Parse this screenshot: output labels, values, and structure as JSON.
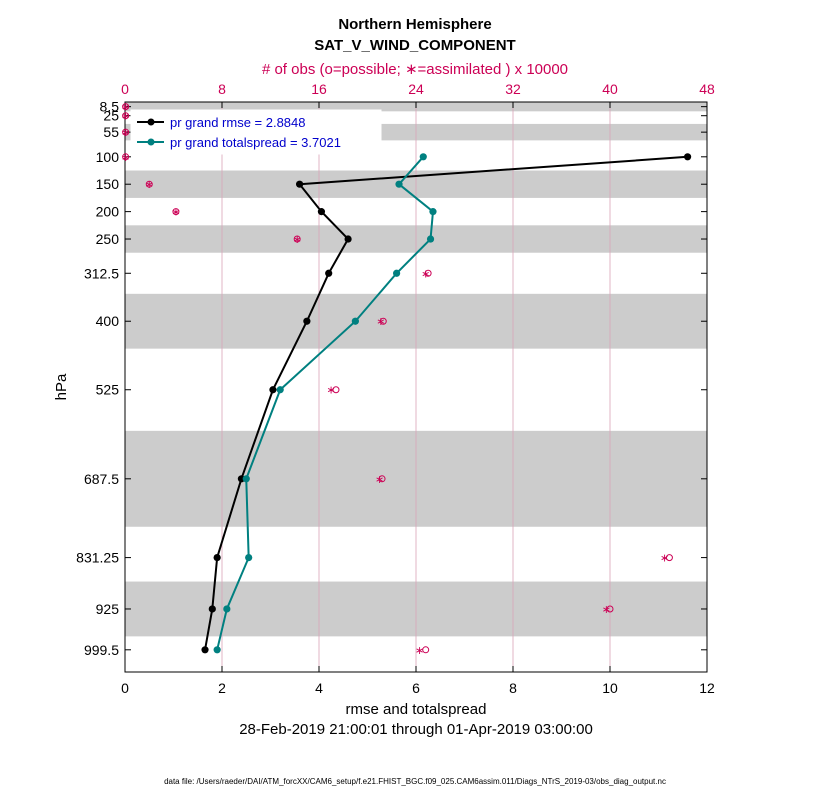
{
  "chart_data": {
    "type": "line",
    "title": "Northern Hemisphere",
    "subtitle": "SAT_V_WIND_COMPONENT",
    "top_axis_label": "# of obs (o=possible; ∗=assimilated ) x 10000",
    "xlabel": "rmse and totalspread",
    "ylabel": "hPa",
    "date_range": "28-Feb-2019 21:00:01 through 01-Apr-2019 03:00:00",
    "footnote": "data file: /Users/raeder/DAI/ATM_forcXX/CAM6_setup/f.e21.FHIST_BGC.f09_025.CAM6assim.011/Diags_NTrS_2019-03/obs_diag_output.nc",
    "xlim": [
      0,
      12
    ],
    "x_ticks": [
      "0",
      "2",
      "4",
      "6",
      "8",
      "10",
      "12"
    ],
    "top_xlim": [
      0,
      48
    ],
    "top_ticks": [
      "0",
      "8",
      "16",
      "24",
      "32",
      "40",
      "48"
    ],
    "levels": [
      8.5,
      25,
      55,
      100,
      150,
      200,
      250,
      312.5,
      400,
      525,
      687.5,
      831.25,
      925,
      999.5
    ],
    "level_labels": [
      "8.5",
      "25",
      "55",
      "100",
      "150",
      "200",
      "250",
      "312.5",
      "400",
      "525",
      "687.5",
      "831.25",
      "925",
      "999.5"
    ],
    "shaded_bands": [
      [
        0,
        17
      ],
      [
        40,
        70
      ],
      [
        125,
        175
      ],
      [
        225,
        275
      ],
      [
        350,
        450
      ],
      [
        600,
        775
      ],
      [
        875,
        975
      ]
    ],
    "series": [
      {
        "name": "pr grand rmse = 2.8848",
        "color": "#000000",
        "levels": [
          100,
          150,
          200,
          250,
          312.5,
          400,
          525,
          687.5,
          831.25,
          925,
          999.5
        ],
        "values": [
          11.6,
          3.6,
          4.05,
          4.6,
          4.2,
          3.75,
          3.05,
          2.4,
          1.9,
          1.8,
          1.65
        ]
      },
      {
        "name": "pr grand totalspread = 3.7021",
        "color": "#008080",
        "levels": [
          100,
          150,
          200,
          250,
          312.5,
          400,
          525,
          687.5,
          831.25,
          925,
          999.5
        ],
        "values": [
          6.15,
          5.65,
          6.35,
          6.3,
          5.6,
          4.75,
          3.2,
          2.5,
          2.55,
          2.1,
          1.9
        ]
      }
    ],
    "obs_possible": {
      "levels": [
        8.5,
        25,
        55,
        100,
        150,
        200,
        250,
        312.5,
        400,
        525,
        687.5,
        831.25,
        925,
        999.5
      ],
      "values": [
        0.05,
        0.05,
        0.05,
        0.05,
        2.0,
        4.2,
        14.2,
        25.0,
        21.3,
        17.4,
        21.2,
        44.9,
        40.0,
        24.8
      ]
    },
    "obs_assimilated": {
      "levels": [
        8.5,
        25,
        55,
        100,
        150,
        200,
        250,
        312.5,
        400,
        525,
        687.5,
        831.25,
        925,
        999.5
      ],
      "values": [
        0.05,
        0.05,
        0.05,
        0.05,
        2.0,
        4.2,
        14.2,
        24.8,
        21.1,
        17.0,
        21.0,
        44.5,
        39.7,
        24.3
      ]
    }
  }
}
